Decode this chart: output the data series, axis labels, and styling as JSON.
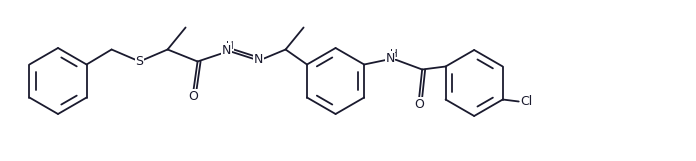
{
  "bg_color": "#ffffff",
  "bond_color": "#1a1a2e",
  "atom_color": "#1a1a2e",
  "lw": 1.3,
  "figsize": [
    6.96,
    1.61
  ],
  "dpi": 100,
  "xlim": [
    0,
    696
  ],
  "ylim": [
    0,
    161
  ]
}
